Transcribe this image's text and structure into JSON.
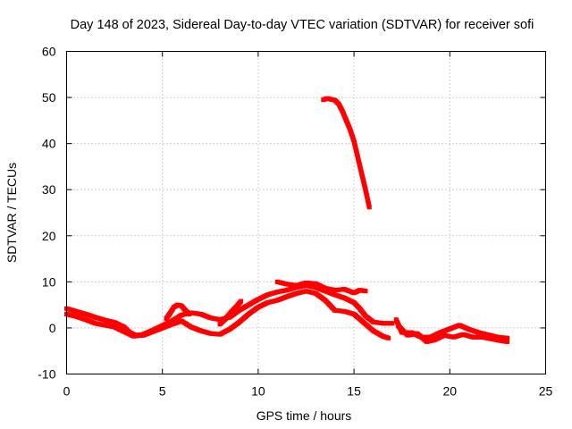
{
  "chart_data": {
    "type": "scatter",
    "title": "Day 148 of 2023, Sidereal Day-to-day VTEC variation (SDTVAR) for receiver sofi",
    "xlabel": "GPS time / hours",
    "ylabel": "SDTVAR / TECUs",
    "xlim": [
      0,
      25
    ],
    "ylim": [
      -10,
      60
    ],
    "xticks": [
      0,
      5,
      10,
      15,
      20,
      25
    ],
    "yticks": [
      -10,
      0,
      10,
      20,
      30,
      40,
      50,
      60
    ],
    "xtick_labels": [
      "0",
      "5",
      "10",
      "15",
      "20",
      "25"
    ],
    "ytick_labels": [
      "-10",
      "0",
      "10",
      "20",
      "30",
      "40",
      "50",
      "60"
    ],
    "grid": true,
    "marker": "plus",
    "color": "#ff0000",
    "series": [
      {
        "name": "main_band_upper",
        "points": [
          [
            0,
            4.2
          ],
          [
            0.5,
            3.6
          ],
          [
            1,
            3.0
          ],
          [
            1.5,
            2.3
          ],
          [
            2,
            1.7
          ],
          [
            2.5,
            1.2
          ],
          [
            3,
            0.2
          ],
          [
            3.3,
            -1.0
          ],
          [
            3.6,
            -1.6
          ],
          [
            4,
            -1.4
          ],
          [
            4.5,
            -0.5
          ],
          [
            5,
            0.5
          ],
          [
            5.5,
            1.5
          ],
          [
            6,
            2.8
          ],
          [
            6.5,
            3.3
          ],
          [
            7,
            3.0
          ],
          [
            7.5,
            2.2
          ],
          [
            8,
            1.8
          ],
          [
            8.5,
            2.3
          ],
          [
            9,
            3.8
          ],
          [
            9.5,
            5.0
          ],
          [
            10,
            6.2
          ],
          [
            10.5,
            7.2
          ],
          [
            11,
            7.8
          ],
          [
            11.5,
            8.2
          ],
          [
            12,
            8.8
          ],
          [
            12.5,
            9.2
          ],
          [
            13,
            8.8
          ],
          [
            13.5,
            8.0
          ],
          [
            14,
            7.2
          ],
          [
            14.5,
            6.5
          ],
          [
            15,
            5.5
          ],
          [
            15.3,
            4.2
          ],
          [
            15.6,
            2.6
          ],
          [
            16,
            1.3
          ],
          [
            16.5,
            1.0
          ],
          [
            17,
            1.0
          ]
        ]
      },
      {
        "name": "main_band_lower",
        "points": [
          [
            0,
            3.0
          ],
          [
            0.5,
            2.5
          ],
          [
            1,
            1.8
          ],
          [
            1.5,
            1.0
          ],
          [
            2,
            0.6
          ],
          [
            2.5,
            0.2
          ],
          [
            3,
            -0.8
          ],
          [
            3.5,
            -1.8
          ],
          [
            4,
            -1.6
          ],
          [
            4.5,
            -0.8
          ],
          [
            5,
            0.0
          ],
          [
            5.5,
            0.8
          ],
          [
            6,
            1.5
          ],
          [
            6.5,
            0.2
          ],
          [
            7,
            -0.6
          ],
          [
            7.5,
            -1.2
          ],
          [
            8,
            -1.4
          ],
          [
            8.5,
            -0.3
          ],
          [
            9,
            1.2
          ],
          [
            9.5,
            3.0
          ],
          [
            10,
            4.5
          ],
          [
            10.5,
            5.5
          ],
          [
            11,
            6.0
          ],
          [
            11.5,
            6.8
          ],
          [
            12,
            7.5
          ],
          [
            12.5,
            8.0
          ],
          [
            13,
            7.5
          ],
          [
            13.5,
            6.0
          ],
          [
            14,
            3.8
          ],
          [
            14.5,
            3.6
          ],
          [
            15,
            3.0
          ],
          [
            15.5,
            1.2
          ],
          [
            16,
            -0.6
          ],
          [
            16.5,
            -1.8
          ],
          [
            16.8,
            -2.2
          ]
        ]
      },
      {
        "name": "segment_6h",
        "points": [
          [
            5.2,
            2.0
          ],
          [
            5.4,
            3.2
          ],
          [
            5.6,
            4.5
          ],
          [
            5.8,
            5.0
          ],
          [
            6.0,
            4.8
          ],
          [
            6.2,
            3.8
          ],
          [
            6.4,
            3.0
          ]
        ]
      },
      {
        "name": "segment_8_9h",
        "points": [
          [
            8.0,
            0.8
          ],
          [
            8.3,
            2.0
          ],
          [
            8.6,
            3.5
          ],
          [
            8.9,
            4.8
          ],
          [
            9.1,
            5.8
          ]
        ]
      },
      {
        "name": "segment_11_15h",
        "points": [
          [
            11.0,
            10.0
          ],
          [
            11.5,
            9.5
          ],
          [
            12.0,
            9.2
          ],
          [
            12.5,
            9.8
          ],
          [
            13.0,
            9.6
          ],
          [
            13.5,
            8.6
          ],
          [
            14.0,
            8.2
          ],
          [
            14.5,
            8.4
          ],
          [
            15.0,
            7.6
          ],
          [
            15.3,
            8.2
          ],
          [
            15.6,
            8.0
          ]
        ]
      },
      {
        "name": "late_band_a",
        "points": [
          [
            17.2,
            1.8
          ],
          [
            17.5,
            -1.0
          ],
          [
            18,
            -1.0
          ],
          [
            18.5,
            -2.0
          ],
          [
            19,
            -2.0
          ],
          [
            19.5,
            -1.0
          ],
          [
            20,
            -0.2
          ],
          [
            20.5,
            0.6
          ],
          [
            21,
            -0.3
          ],
          [
            21.5,
            -1.0
          ],
          [
            22,
            -1.5
          ],
          [
            22.5,
            -2.0
          ],
          [
            23,
            -2.2
          ]
        ]
      },
      {
        "name": "late_band_b",
        "points": [
          [
            17.3,
            0.5
          ],
          [
            17.8,
            -1.6
          ],
          [
            18.3,
            -1.2
          ],
          [
            18.8,
            -3.0
          ],
          [
            19.2,
            -2.6
          ],
          [
            19.7,
            -1.6
          ],
          [
            20.2,
            -2.0
          ],
          [
            20.7,
            -1.4
          ],
          [
            21.2,
            -2.0
          ],
          [
            21.7,
            -2.0
          ],
          [
            22.2,
            -2.4
          ],
          [
            22.7,
            -2.8
          ],
          [
            23.0,
            -3.0
          ]
        ]
      },
      {
        "name": "steep_descent",
        "points": [
          [
            13.4,
            49.5
          ],
          [
            13.6,
            49.8
          ],
          [
            13.8,
            49.6
          ],
          [
            14.0,
            49.4
          ],
          [
            14.2,
            48.6
          ],
          [
            14.4,
            47.0
          ],
          [
            14.6,
            45.0
          ],
          [
            14.8,
            43.0
          ],
          [
            15.0,
            40.5
          ],
          [
            15.2,
            37.0
          ],
          [
            15.4,
            33.5
          ],
          [
            15.6,
            30.0
          ],
          [
            15.8,
            26.2
          ]
        ]
      }
    ]
  }
}
